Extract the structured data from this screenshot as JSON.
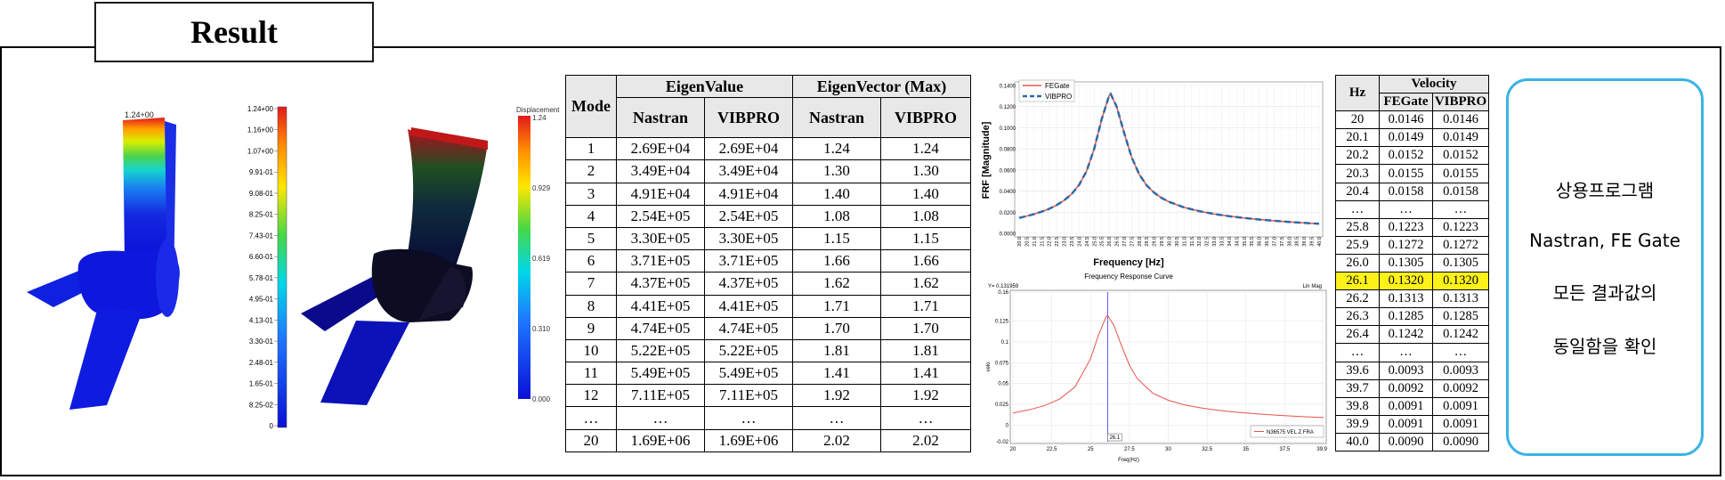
{
  "header": {
    "title": "Result"
  },
  "models": {
    "left_top_label": "1.24+00",
    "left_scale": [
      "1.24+00",
      "1.16+00",
      "1.07+00",
      "9.91-01",
      "9.08-01",
      "8.25-01",
      "7.43-01",
      "6.60-01",
      "5.78-01",
      "4.95-01",
      "4.13-01",
      "3.30-01",
      "2.48-01",
      "1.65-01",
      "8.25-02",
      "0"
    ],
    "right_scale_title": "Displacement",
    "right_scale": [
      "1.24",
      "0.929",
      "0.619",
      "0.310",
      "0.000"
    ]
  },
  "eigen_table": {
    "header": {
      "mode": "Mode",
      "eigenvalue": "EigenValue",
      "eigenvector": "EigenVector (Max)",
      "nastran": "Nastran",
      "vibpro": "VIBPRO"
    },
    "rows": [
      [
        "1",
        "2.69E+04",
        "2.69E+04",
        "1.24",
        "1.24"
      ],
      [
        "2",
        "3.49E+04",
        "3.49E+04",
        "1.30",
        "1.30"
      ],
      [
        "3",
        "4.91E+04",
        "4.91E+04",
        "1.40",
        "1.40"
      ],
      [
        "4",
        "2.54E+05",
        "2.54E+05",
        "1.08",
        "1.08"
      ],
      [
        "5",
        "3.30E+05",
        "3.30E+05",
        "1.15",
        "1.15"
      ],
      [
        "6",
        "3.71E+05",
        "3.71E+05",
        "1.66",
        "1.66"
      ],
      [
        "7",
        "4.37E+05",
        "4.37E+05",
        "1.62",
        "1.62"
      ],
      [
        "8",
        "4.41E+05",
        "4.41E+05",
        "1.71",
        "1.71"
      ],
      [
        "9",
        "4.74E+05",
        "4.74E+05",
        "1.70",
        "1.70"
      ],
      [
        "10",
        "5.22E+05",
        "5.22E+05",
        "1.81",
        "1.81"
      ],
      [
        "11",
        "5.49E+05",
        "5.49E+05",
        "1.41",
        "1.41"
      ],
      [
        "12",
        "7.11E+05",
        "7.11E+05",
        "1.92",
        "1.92"
      ],
      [
        "…",
        "…",
        "…",
        "…",
        "…"
      ],
      [
        "20",
        "1.69E+06",
        "1.69E+06",
        "2.02",
        "2.02"
      ]
    ]
  },
  "chart_data": [
    {
      "type": "line",
      "xlabel": "Frequency [Hz]",
      "ylabel": "FRF [Magnitude]",
      "legend": [
        "FEGate",
        "VIBPRO"
      ],
      "legend_position": "top-left",
      "ylim": [
        0,
        0.14
      ],
      "yticks": [
        "0.0000",
        "0.0200",
        "0.0400",
        "0.0600",
        "0.0800",
        "0.1000",
        "0.1200",
        "0.1400"
      ],
      "xticks": [
        "20.0",
        "20.5",
        "21.0",
        "21.5",
        "22.0",
        "22.5",
        "23.0",
        "23.5",
        "24.0",
        "24.5",
        "25.0",
        "25.5",
        "26.0",
        "26.5",
        "27.0",
        "27.5",
        "28.0",
        "28.5",
        "29.0",
        "29.5",
        "30.0",
        "30.5",
        "31.0",
        "31.5",
        "32.0",
        "32.5",
        "33.0",
        "33.5",
        "34.0",
        "34.5",
        "35.0",
        "35.5",
        "36.0",
        "36.5",
        "37.0",
        "37.5",
        "38.0",
        "38.5",
        "39.0",
        "39.5",
        "40.0"
      ],
      "x": [
        20,
        20.5,
        21,
        21.5,
        22,
        22.5,
        23,
        23.5,
        24,
        24.5,
        25,
        25.5,
        26,
        26.1,
        26.5,
        27,
        27.5,
        28,
        28.5,
        29,
        29.5,
        30,
        31,
        32,
        33,
        34,
        35,
        36,
        37,
        38,
        39,
        40
      ],
      "series": [
        {
          "name": "FEGate",
          "color": "#e8534a",
          "values": [
            0.0146,
            0.0163,
            0.0182,
            0.0205,
            0.0232,
            0.0267,
            0.0312,
            0.0372,
            0.046,
            0.059,
            0.08,
            0.108,
            0.1305,
            0.132,
            0.12,
            0.095,
            0.072,
            0.056,
            0.0455,
            0.0385,
            0.0335,
            0.0298,
            0.0245,
            0.021,
            0.0183,
            0.0162,
            0.0145,
            0.0131,
            0.0119,
            0.0108,
            0.0099,
            0.009
          ]
        },
        {
          "name": "VIBPRO",
          "color": "#2f6aa8",
          "values": [
            0.0146,
            0.0163,
            0.0182,
            0.0205,
            0.0232,
            0.0267,
            0.0312,
            0.0372,
            0.046,
            0.059,
            0.08,
            0.108,
            0.1305,
            0.132,
            0.12,
            0.095,
            0.072,
            0.056,
            0.0455,
            0.0385,
            0.0335,
            0.0298,
            0.0245,
            0.021,
            0.0183,
            0.0162,
            0.0145,
            0.0131,
            0.0119,
            0.0108,
            0.0099,
            0.009
          ]
        }
      ]
    },
    {
      "type": "line",
      "title": "Frequency Response Curve",
      "top_left_label": "Y= 0.131959",
      "top_right_label": "Lin  Mag",
      "xlabel": "Freq(Hz)",
      "ylabel": "velo",
      "xlim": [
        20,
        40
      ],
      "ylim": [
        -0.02,
        0.16
      ],
      "xticks": [
        "20",
        "22.5",
        "25",
        "27.5",
        "30",
        "32.5",
        "35",
        "37.5",
        "39.9"
      ],
      "yticks": [
        "-0.02",
        "0",
        "0.025",
        "0.05",
        "0.075",
        "0.1",
        "0.125",
        "0.16"
      ],
      "cursor_x": 26.1,
      "cursor_label": "26.1",
      "legend": [
        "N36575 VEL Z FRA"
      ],
      "legend_position": "bottom-right",
      "x": [
        20,
        21,
        22,
        23,
        24,
        25,
        25.5,
        26,
        26.1,
        26.5,
        27,
        27.5,
        28,
        29,
        30,
        31,
        32,
        33,
        34,
        35,
        36,
        37,
        38,
        39,
        40
      ],
      "series": [
        {
          "name": "N36575 VEL Z FRA",
          "color": "#e8534a",
          "values": [
            0.0146,
            0.0182,
            0.0232,
            0.0312,
            0.046,
            0.08,
            0.108,
            0.1305,
            0.132,
            0.12,
            0.095,
            0.072,
            0.056,
            0.0385,
            0.0298,
            0.0245,
            0.021,
            0.0183,
            0.0162,
            0.0145,
            0.0131,
            0.0119,
            0.0108,
            0.0099,
            0.009
          ]
        }
      ]
    }
  ],
  "velocity_table": {
    "header": {
      "hz": "Hz",
      "velocity": "Velocity",
      "fegate": "FEGate",
      "vibpro": "VIBPRO"
    },
    "rows": [
      [
        "20",
        "0.0146",
        "0.0146"
      ],
      [
        "20.1",
        "0.0149",
        "0.0149"
      ],
      [
        "20.2",
        "0.0152",
        "0.0152"
      ],
      [
        "20.3",
        "0.0155",
        "0.0155"
      ],
      [
        "20.4",
        "0.0158",
        "0.0158"
      ],
      [
        "…",
        "…",
        "…"
      ],
      [
        "25.8",
        "0.1223",
        "0.1223"
      ],
      [
        "25.9",
        "0.1272",
        "0.1272"
      ],
      [
        "26.0",
        "0.1305",
        "0.1305"
      ],
      [
        "26.1",
        "0.1320",
        "0.1320"
      ],
      [
        "26.2",
        "0.1313",
        "0.1313"
      ],
      [
        "26.3",
        "0.1285",
        "0.1285"
      ],
      [
        "26.4",
        "0.1242",
        "0.1242"
      ],
      [
        "…",
        "…",
        "…"
      ],
      [
        "39.6",
        "0.0093",
        "0.0093"
      ],
      [
        "39.7",
        "0.0092",
        "0.0092"
      ],
      [
        "39.8",
        "0.0091",
        "0.0091"
      ],
      [
        "39.9",
        "0.0091",
        "0.0091"
      ],
      [
        "40.0",
        "0.0090",
        "0.0090"
      ]
    ],
    "highlight_hz": "26.1",
    "highlight_color": "#fcf21a"
  },
  "note": {
    "lines": [
      "상용프로그램",
      "Nastran, FE Gate",
      "모든 결과값의",
      "동일함을 확인"
    ],
    "border_color": "#3ab3e6"
  }
}
